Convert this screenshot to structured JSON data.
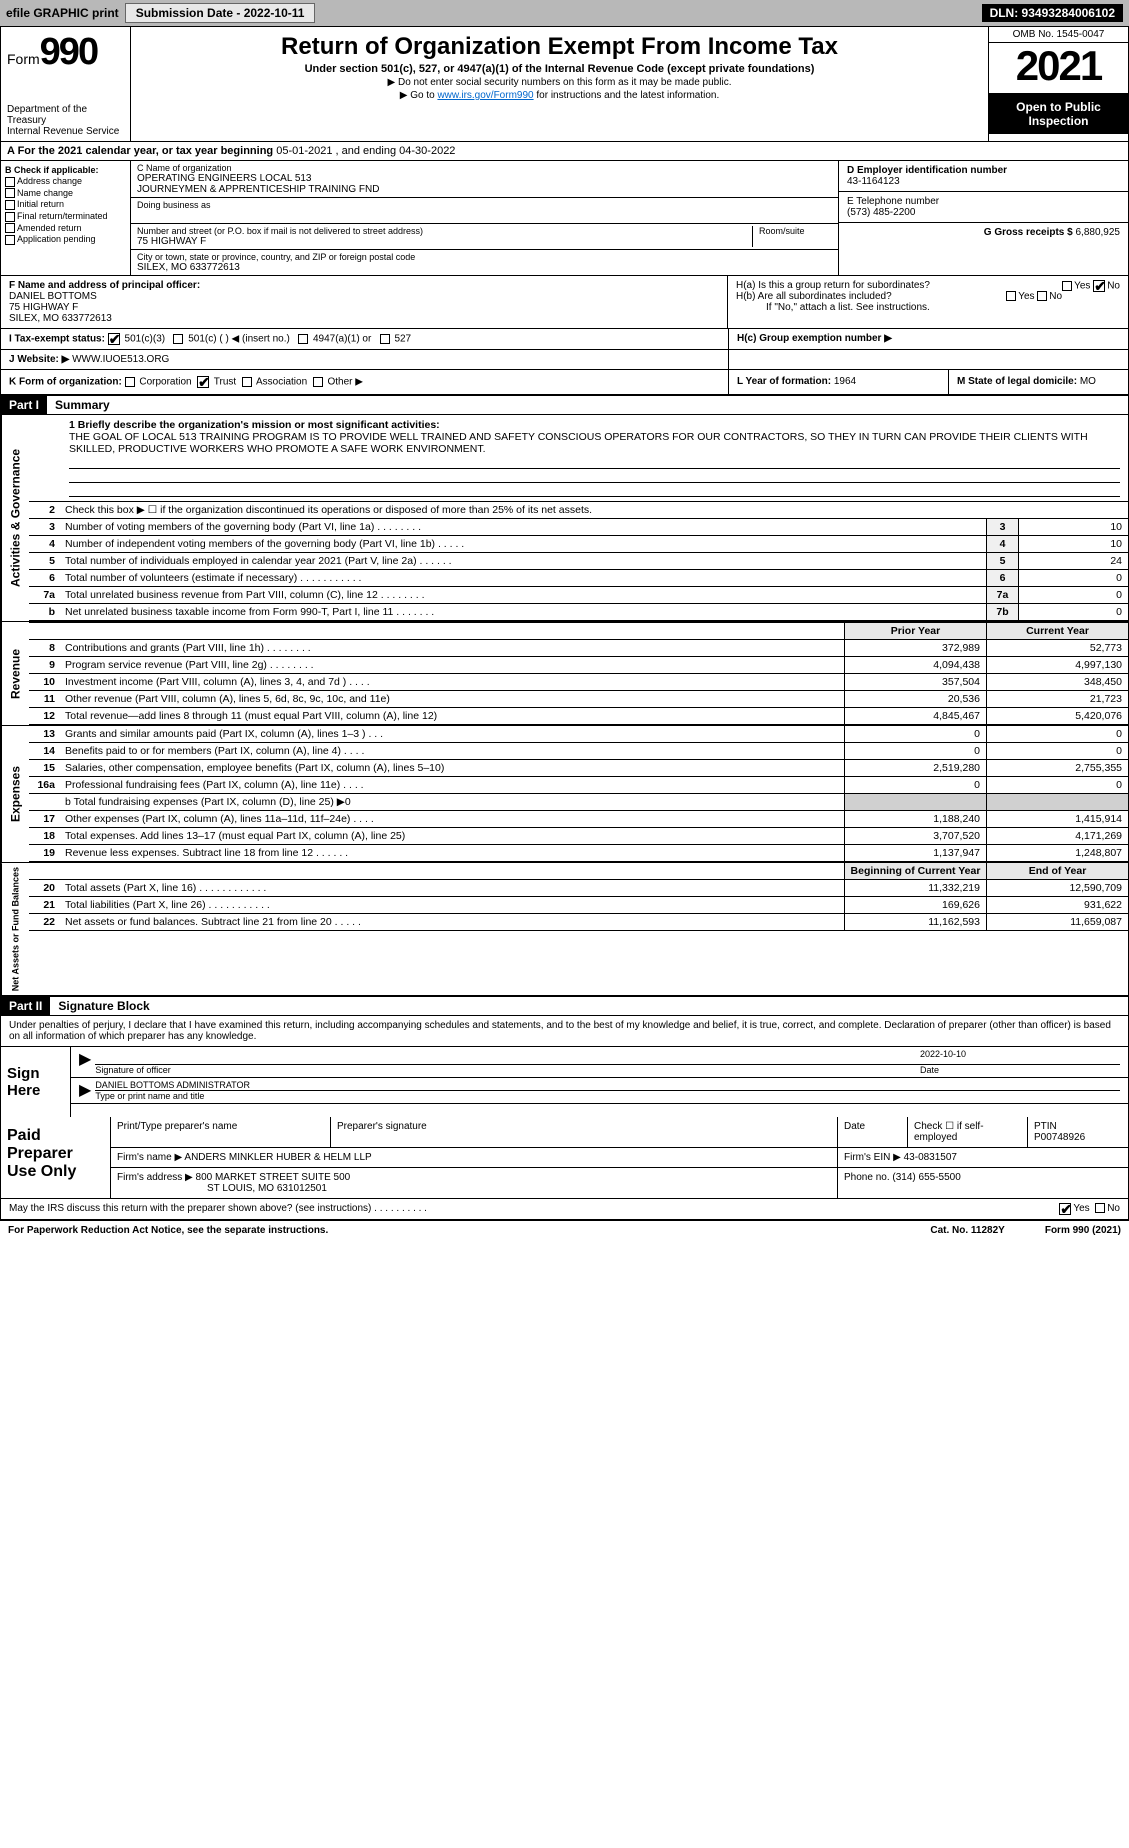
{
  "topbar": {
    "efile": "efile GRAPHIC print",
    "submission_label": "Submission Date - 2022-10-11",
    "dln": "DLN: 93493284006102"
  },
  "header": {
    "form_prefix": "Form",
    "form_number": "990",
    "title": "Return of Organization Exempt From Income Tax",
    "subtitle": "Under section 501(c), 527, or 4947(a)(1) of the Internal Revenue Code (except private foundations)",
    "note1": "▶ Do not enter social security numbers on this form as it may be made public.",
    "note2_pre": "▶ Go to ",
    "note2_link": "www.irs.gov/Form990",
    "note2_post": " for instructions and the latest information.",
    "dept": "Department of the Treasury",
    "irs": "Internal Revenue Service",
    "omb": "OMB No. 1545-0047",
    "year": "2021",
    "open": "Open to Public Inspection"
  },
  "taxyear": {
    "text_a": "A For the 2021 calendar year, or tax year beginning ",
    "begin": "05-01-2021",
    "text_b": " , and ending ",
    "end": "04-30-2022"
  },
  "sectionB": {
    "label": "B Check if applicable:",
    "items": [
      "Address change",
      "Name change",
      "Initial return",
      "Final return/terminated",
      "Amended return",
      "Application pending"
    ]
  },
  "sectionC": {
    "name_label": "C Name of organization",
    "name1": "OPERATING ENGINEERS LOCAL 513",
    "name2": "JOURNEYMEN & APPRENTICESHIP TRAINING FND",
    "dba_label": "Doing business as",
    "addr_label": "Number and street (or P.O. box if mail is not delivered to street address)",
    "room_label": "Room/suite",
    "addr": "75 HIGHWAY F",
    "city_label": "City or town, state or province, country, and ZIP or foreign postal code",
    "city": "SILEX, MO  633772613"
  },
  "sectionD": {
    "label": "D Employer identification number",
    "ein": "43-1164123"
  },
  "sectionE": {
    "label": "E Telephone number",
    "phone": "(573) 485-2200"
  },
  "sectionG": {
    "label": "G Gross receipts $",
    "val": "6,880,925"
  },
  "sectionF": {
    "label": "F Name and address of principal officer:",
    "name": "DANIEL BOTTOMS",
    "addr1": "75 HIGHWAY F",
    "addr2": "SILEX, MO  633772613"
  },
  "sectionH": {
    "a_label": "H(a)  Is this a group return for subordinates?",
    "a_yes": "Yes",
    "a_no": "No",
    "b_label": "H(b)  Are all subordinates included?",
    "b_note": "If \"No,\" attach a list. See instructions.",
    "c_label": "H(c)  Group exemption number ▶"
  },
  "statusI": {
    "label": "I  Tax-exempt status:",
    "opt1": "501(c)(3)",
    "opt2": "501(c) (   ) ◀ (insert no.)",
    "opt3": "4947(a)(1) or",
    "opt4": "527"
  },
  "sectionJ": {
    "label": "J  Website: ▶",
    "url": "WWW.IUOE513.ORG"
  },
  "sectionK": {
    "label": "K Form of organization:",
    "opts": [
      "Corporation",
      "Trust",
      "Association",
      "Other ▶"
    ]
  },
  "sectionL": {
    "label": "L Year of formation:",
    "val": "1964"
  },
  "sectionM": {
    "label": "M State of legal domicile:",
    "val": "MO"
  },
  "part1": {
    "hdr": "Part I",
    "title": "Summary",
    "tab_gov": "Activities & Governance",
    "tab_rev": "Revenue",
    "tab_exp": "Expenses",
    "tab_net": "Net Assets or Fund Balances",
    "l1_label": "1  Briefly describe the organization's mission or most significant activities:",
    "l1_text": "THE GOAL OF LOCAL 513 TRAINING PROGRAM IS TO PROVIDE WELL TRAINED AND SAFETY CONSCIOUS OPERATORS FOR OUR CONTRACTORS, SO THEY IN TURN CAN PROVIDE THEIR CLIENTS WITH SKILLED, PRODUCTIVE WORKERS WHO PROMOTE A SAFE WORK ENVIRONMENT.",
    "l2": "Check this box ▶ ☐  if the organization discontinued its operations or disposed of more than 25% of its net assets.",
    "lines_single": [
      {
        "n": "3",
        "t": "Number of voting members of the governing body (Part VI, line 1a)  .    .    .    .    .    .    .    .",
        "b": "3",
        "v": "10"
      },
      {
        "n": "4",
        "t": "Number of independent voting members of the governing body (Part VI, line 1b)  .    .    .    .    .",
        "b": "4",
        "v": "10"
      },
      {
        "n": "5",
        "t": "Total number of individuals employed in calendar year 2021 (Part V, line 2a)  .    .    .    .    .    .",
        "b": "5",
        "v": "24"
      },
      {
        "n": "6",
        "t": "Total number of volunteers (estimate if necessary)  .    .    .    .    .    .    .    .    .    .    .",
        "b": "6",
        "v": "0"
      },
      {
        "n": "7a",
        "t": "Total unrelated business revenue from Part VIII, column (C), line 12  .    .    .    .    .    .    .    .",
        "b": "7a",
        "v": "0"
      },
      {
        "n": "b",
        "t": "Net unrelated business taxable income from Form 990-T, Part I, line 11  .    .    .    .    .    .    .",
        "b": "7b",
        "v": "0"
      }
    ],
    "col_prior": "Prior Year",
    "col_current": "Current Year",
    "revenue": [
      {
        "n": "8",
        "t": "Contributions and grants (Part VIII, line 1h)   .    .    .    .    .    .    .    .",
        "p": "372,989",
        "c": "52,773"
      },
      {
        "n": "9",
        "t": "Program service revenue (Part VIII, line 2g)   .    .    .    .    .    .    .    .",
        "p": "4,094,438",
        "c": "4,997,130"
      },
      {
        "n": "10",
        "t": "Investment income (Part VIII, column (A), lines 3, 4, and 7d )   .    .    .    .",
        "p": "357,504",
        "c": "348,450"
      },
      {
        "n": "11",
        "t": "Other revenue (Part VIII, column (A), lines 5, 6d, 8c, 9c, 10c, and 11e)",
        "p": "20,536",
        "c": "21,723"
      },
      {
        "n": "12",
        "t": "Total revenue—add lines 8 through 11 (must equal Part VIII, column (A), line 12)",
        "p": "4,845,467",
        "c": "5,420,076"
      }
    ],
    "expenses": [
      {
        "n": "13",
        "t": "Grants and similar amounts paid (Part IX, column (A), lines 1–3 )   .    .    .",
        "p": "0",
        "c": "0"
      },
      {
        "n": "14",
        "t": "Benefits paid to or for members (Part IX, column (A), line 4)   .    .    .    .",
        "p": "0",
        "c": "0"
      },
      {
        "n": "15",
        "t": "Salaries, other compensation, employee benefits (Part IX, column (A), lines 5–10)",
        "p": "2,519,280",
        "c": "2,755,355"
      },
      {
        "n": "16a",
        "t": "Professional fundraising fees (Part IX, column (A), line 11e)   .    .    .    .",
        "p": "0",
        "c": "0"
      }
    ],
    "l16b": "b  Total fundraising expenses (Part IX, column (D), line 25) ▶0",
    "expenses2": [
      {
        "n": "17",
        "t": "Other expenses (Part IX, column (A), lines 11a–11d, 11f–24e)   .    .    .    .",
        "p": "1,188,240",
        "c": "1,415,914"
      },
      {
        "n": "18",
        "t": "Total expenses. Add lines 13–17 (must equal Part IX, column (A), line 25)",
        "p": "3,707,520",
        "c": "4,171,269"
      },
      {
        "n": "19",
        "t": "Revenue less expenses. Subtract line 18 from line 12   .    .    .    .    .    .",
        "p": "1,137,947",
        "c": "1,248,807"
      }
    ],
    "col_begin": "Beginning of Current Year",
    "col_end": "End of Year",
    "netassets": [
      {
        "n": "20",
        "t": "Total assets (Part X, line 16)  .    .    .    .    .    .    .    .    .    .    .    .",
        "p": "11,332,219",
        "c": "12,590,709"
      },
      {
        "n": "21",
        "t": "Total liabilities (Part X, line 26)  .    .    .    .    .    .    .    .    .    .    .",
        "p": "169,626",
        "c": "931,622"
      },
      {
        "n": "22",
        "t": "Net assets or fund balances. Subtract line 21 from line 20  .    .    .    .    .",
        "p": "11,162,593",
        "c": "11,659,087"
      }
    ]
  },
  "part2": {
    "hdr": "Part II",
    "title": "Signature Block",
    "penalty": "Under penalties of perjury, I declare that I have examined this return, including accompanying schedules and statements, and to the best of my knowledge and belief, it is true, correct, and complete. Declaration of preparer (other than officer) is based on all information of which preparer has any knowledge.",
    "sign_here": "Sign Here",
    "sig_officer": "Signature of officer",
    "sig_date": "Date",
    "sig_date_val": "2022-10-10",
    "sig_name": "DANIEL BOTTOMS  ADMINISTRATOR",
    "sig_type": "Type or print name and title",
    "paid_label": "Paid Preparer Use Only",
    "prep_name_label": "Print/Type preparer's name",
    "prep_sig_label": "Preparer's signature",
    "prep_date_label": "Date",
    "prep_check": "Check ☐ if self-employed",
    "ptin_label": "PTIN",
    "ptin": "P00748926",
    "firm_name_label": "Firm's name    ▶",
    "firm_name": "ANDERS MINKLER HUBER & HELM LLP",
    "firm_ein_label": "Firm's EIN ▶",
    "firm_ein": "43-0831507",
    "firm_addr_label": "Firm's address ▶",
    "firm_addr1": "800 MARKET STREET SUITE 500",
    "firm_addr2": "ST LOUIS, MO  631012501",
    "firm_phone_label": "Phone no.",
    "firm_phone": "(314) 655-5500",
    "discuss": "May the IRS discuss this return with the preparer shown above? (see instructions)   .    .    .    .    .    .    .    .    .    .",
    "discuss_yes": "Yes",
    "discuss_no": "No"
  },
  "footer": {
    "pra": "For Paperwork Reduction Act Notice, see the separate instructions.",
    "cat": "Cat. No. 11282Y",
    "form": "Form 990 (2021)"
  }
}
